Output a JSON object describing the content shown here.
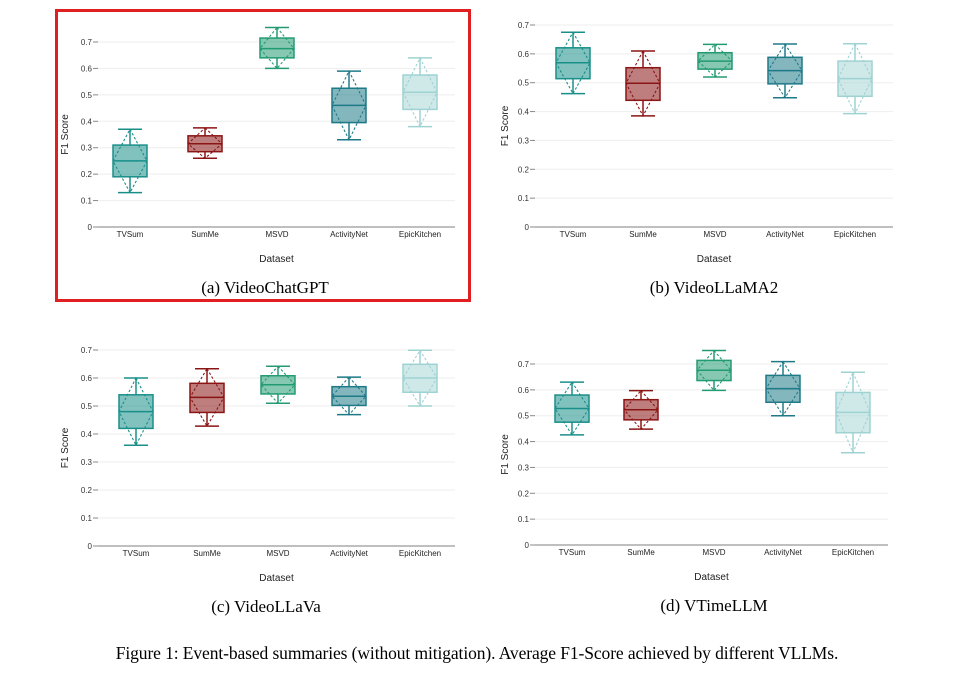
{
  "figure_caption": "Figure 1: Event-based summaries (without mitigation). Average F1-Score achieved by different VLLMs.",
  "highlighted_panel": "a",
  "colors": {
    "TVSum": "#1a8f8a",
    "SumMe": "#8b1414",
    "MSVD": "#239b72",
    "ActivityNet": "#1f7a88",
    "EpicKitchen": "#9fd2d2",
    "highlight": "#e02020"
  },
  "chart_data": [
    {
      "id": "a",
      "type": "box",
      "caption": "(a) VideoChatGPT",
      "xlabel": "Dataset",
      "ylabel": "F1 Score",
      "ylim": [
        0,
        0.7
      ],
      "yticks": [
        "0",
        "0.1",
        "0.2",
        "0.3",
        "0.4",
        "0.5",
        "0.6",
        "0.7"
      ],
      "grid": true,
      "categories": [
        "TVSum",
        "SumMe",
        "MSVD",
        "ActivityNet",
        "EpicKitchen"
      ],
      "boxes": [
        {
          "name": "TVSum",
          "min": 0.13,
          "q1": 0.19,
          "median": 0.25,
          "q3": 0.31,
          "max": 0.37
        },
        {
          "name": "SumMe",
          "min": 0.26,
          "q1": 0.285,
          "median": 0.315,
          "q3": 0.345,
          "max": 0.375
        },
        {
          "name": "MSVD",
          "min": 0.6,
          "q1": 0.64,
          "median": 0.675,
          "q3": 0.715,
          "max": 0.755
        },
        {
          "name": "ActivityNet",
          "min": 0.33,
          "q1": 0.395,
          "median": 0.46,
          "q3": 0.525,
          "max": 0.59
        },
        {
          "name": "EpicKitchen",
          "min": 0.38,
          "q1": 0.445,
          "median": 0.51,
          "q3": 0.575,
          "max": 0.64
        }
      ]
    },
    {
      "id": "b",
      "type": "box",
      "caption": "(b) VideoLLaMA2",
      "xlabel": "Dataset",
      "ylabel": "F1 Score",
      "ylim": [
        0,
        0.7
      ],
      "yticks": [
        "0",
        "0.1",
        "0.2",
        "0.3",
        "0.4",
        "0.5",
        "0.6",
        "0.7"
      ],
      "grid": true,
      "categories": [
        "TVSum",
        "SumMe",
        "MSVD",
        "ActivityNet",
        "EpicKitchen"
      ],
      "boxes": [
        {
          "name": "TVSum",
          "min": 0.462,
          "q1": 0.514,
          "median": 0.569,
          "q3": 0.621,
          "max": 0.675
        },
        {
          "name": "SumMe",
          "min": 0.385,
          "q1": 0.439,
          "median": 0.498,
          "q3": 0.552,
          "max": 0.61
        },
        {
          "name": "MSVD",
          "min": 0.52,
          "q1": 0.547,
          "median": 0.575,
          "q3": 0.604,
          "max": 0.633
        },
        {
          "name": "ActivityNet",
          "min": 0.448,
          "q1": 0.496,
          "median": 0.542,
          "q3": 0.588,
          "max": 0.634
        },
        {
          "name": "EpicKitchen",
          "min": 0.393,
          "q1": 0.453,
          "median": 0.514,
          "q3": 0.575,
          "max": 0.635
        }
      ]
    },
    {
      "id": "c",
      "type": "box",
      "caption": "(c) VideoLLaVa",
      "xlabel": "Dataset",
      "ylabel": "F1 Score",
      "ylim": [
        0,
        0.7
      ],
      "yticks": [
        "0",
        "0.1",
        "0.2",
        "0.3",
        "0.4",
        "0.5",
        "0.6",
        "0.7"
      ],
      "grid": true,
      "categories": [
        "TVSum",
        "SumMe",
        "MSVD",
        "ActivityNet",
        "EpicKitchen"
      ],
      "boxes": [
        {
          "name": "TVSum",
          "min": 0.36,
          "q1": 0.42,
          "median": 0.48,
          "q3": 0.54,
          "max": 0.6
        },
        {
          "name": "SumMe",
          "min": 0.428,
          "q1": 0.477,
          "median": 0.531,
          "q3": 0.581,
          "max": 0.633
        },
        {
          "name": "MSVD",
          "min": 0.51,
          "q1": 0.543,
          "median": 0.576,
          "q3": 0.608,
          "max": 0.642
        },
        {
          "name": "ActivityNet",
          "min": 0.469,
          "q1": 0.502,
          "median": 0.535,
          "q3": 0.569,
          "max": 0.603
        },
        {
          "name": "EpicKitchen",
          "min": 0.5,
          "q1": 0.549,
          "median": 0.6,
          "q3": 0.649,
          "max": 0.699
        }
      ]
    },
    {
      "id": "d",
      "type": "box",
      "caption": "(d) VTimeLLM",
      "xlabel": "Dataset",
      "ylabel": "F1 Score",
      "ylim": [
        0,
        0.7
      ],
      "yticks": [
        "0",
        "0.1",
        "0.2",
        "0.3",
        "0.4",
        "0.5",
        "0.6",
        "0.7"
      ],
      "grid": true,
      "categories": [
        "TVSum",
        "SumMe",
        "MSVD",
        "ActivityNet",
        "EpicKitchen"
      ],
      "boxes": [
        {
          "name": "TVSum",
          "min": 0.426,
          "q1": 0.475,
          "median": 0.528,
          "q3": 0.58,
          "max": 0.63
        },
        {
          "name": "SumMe",
          "min": 0.448,
          "q1": 0.484,
          "median": 0.523,
          "q3": 0.562,
          "max": 0.597
        },
        {
          "name": "MSVD",
          "min": 0.598,
          "q1": 0.636,
          "median": 0.676,
          "q3": 0.714,
          "max": 0.752
        },
        {
          "name": "ActivityNet",
          "min": 0.5,
          "q1": 0.552,
          "median": 0.605,
          "q3": 0.656,
          "max": 0.709
        },
        {
          "name": "EpicKitchen",
          "min": 0.357,
          "q1": 0.434,
          "median": 0.513,
          "q3": 0.59,
          "max": 0.668
        }
      ]
    }
  ]
}
